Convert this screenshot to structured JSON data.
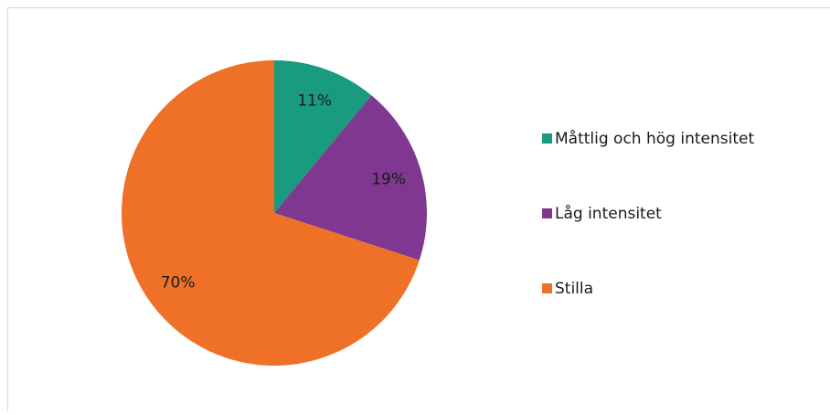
{
  "chart_data": {
    "type": "pie",
    "categories": [
      "Måttlig och hög intensitet",
      "Låg intensitet",
      "Stilla"
    ],
    "values": [
      11,
      19,
      70
    ],
    "value_labels": [
      "11%",
      "19%",
      "70%"
    ],
    "colors": [
      "#189b7e",
      "#7f3790",
      "#ee7127"
    ],
    "legend": "right"
  }
}
